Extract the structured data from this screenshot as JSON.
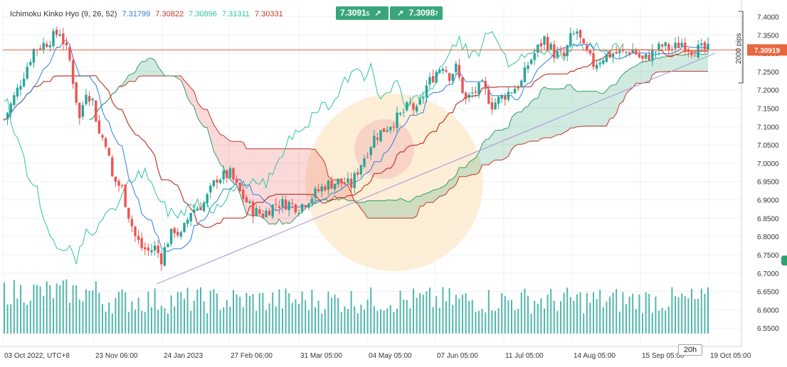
{
  "indicator": {
    "name": "Ichimoku Kinko Hyo (9, 26, 52)",
    "values": [
      {
        "text": "7.31799",
        "color": "#2f7fe0"
      },
      {
        "text": "7.30822",
        "color": "#c0392b"
      },
      {
        "text": "7.30896",
        "color": "#2ec4a0"
      },
      {
        "text": "7.31311",
        "color": "#2ec4a0"
      },
      {
        "text": "7.30331",
        "color": "#c0392b"
      }
    ]
  },
  "trade_panel": {
    "sell": {
      "main": "7.3091",
      "sup": "5"
    },
    "buy": {
      "main": "7.3098",
      "sup": "7"
    },
    "sell_arrow": "↗",
    "buy_arrow": "↗"
  },
  "current_price": {
    "label": "7.30919"
  },
  "range_annotation": {
    "label": "2000 pips"
  },
  "timeframe_label": "20h",
  "colors": {
    "candle_up": "#26a69a",
    "candle_down": "#ef5350",
    "tenkan": "#2f7fe0",
    "kijun": "#c0392b",
    "chikou": "#2ec4a0",
    "kumo_bull": "#2e9e6e",
    "kumo_bear": "#ef5350",
    "price_line": "#e8663d",
    "trend_line": "#b39ddb",
    "volume": "#26a69a"
  },
  "chart_data": {
    "type": "candlestick",
    "instrument_hint": "",
    "y_axis": {
      "range": [
        6.5,
        7.43
      ],
      "ticks": [
        "7.4000",
        "7.3500",
        "7.3000",
        "7.2500",
        "7.2000",
        "7.1500",
        "7.1000",
        "7.0500",
        "7.0000",
        "6.9500",
        "6.9000",
        "6.8500",
        "6.8000",
        "6.7500",
        "6.7000",
        "6.6500",
        "6.6000",
        "6.5500"
      ]
    },
    "x_axis": {
      "ticks": [
        "03 Oct 2022, UTC+8",
        "23 Nov 06:00",
        "24 Jan 2023",
        "27 Feb 06:00",
        "31 Mar 05:00",
        "04 May 05:00",
        "07 Jun 05:00",
        "11 Jul 05:00",
        "14 Aug 05:00",
        "15 Sep 05:00",
        "19 Oct 05:00"
      ]
    },
    "price_trend_approx": [
      {
        "x": "03 Oct 2022",
        "close": 7.12
      },
      {
        "x": "early Nov 2022",
        "close": 7.35
      },
      {
        "x": "23 Nov 2022",
        "close": 7.05
      },
      {
        "x": "late Dec 2022",
        "close": 6.78
      },
      {
        "x": "24 Jan 2023",
        "close": 6.74
      },
      {
        "x": "27 Feb 2023",
        "close": 6.95
      },
      {
        "x": "31 Mar 2023",
        "close": 6.88
      },
      {
        "x": "04 May 2023",
        "close": 6.93
      },
      {
        "x": "07 Jun 2023",
        "close": 7.13
      },
      {
        "x": "11 Jul 2023",
        "close": 7.2
      },
      {
        "x": "14 Aug 2023",
        "close": 7.28
      },
      {
        "x": "15 Sep 2023",
        "close": 7.29
      },
      {
        "x": "19 Oct 2023",
        "close": 7.31
      }
    ],
    "current_price": 7.30919,
    "grid": true
  }
}
